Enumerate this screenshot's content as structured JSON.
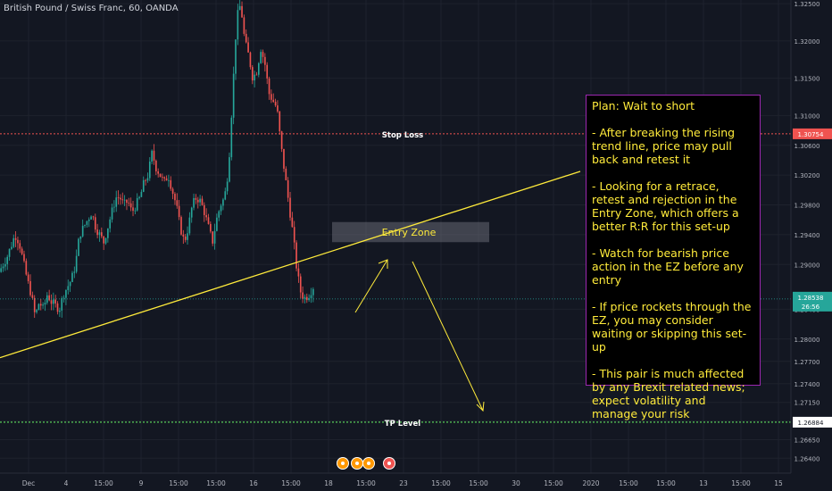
{
  "symbol_title": "British Pound / Swiss Franc, 60, OANDA",
  "plan_note": {
    "title": "Plan: Wait to short",
    "points": [
      "- After breaking the rising trend line, price may pull back and retest it",
      "- Looking for a retrace, retest and rejection in the Entry Zone, which offers a better R:R for this set-up",
      "- Watch for bearish price action in the EZ before any entry",
      "- If price rockets through the EZ, you may consider waiting or skipping this set-up",
      "- This pair is much affected by any Brexit related news; expect volatility and manage your risk"
    ]
  },
  "chart_data": {
    "type": "candlestick",
    "ylim": [
      1.262,
      1.3255
    ],
    "y_ticks": [
      "1.32500",
      "1.32000",
      "1.31500",
      "1.31000",
      "1.30600",
      "1.30200",
      "1.29800",
      "1.29400",
      "1.29000",
      "1.28400",
      "1.28000",
      "1.27700",
      "1.27400",
      "1.27150",
      "1.26900",
      "1.26650",
      "1.26400"
    ],
    "x_ticks": [
      "Dec",
      "4",
      "15:00",
      "9",
      "15:00",
      "15:00",
      "16",
      "15:00",
      "18",
      "15:00",
      "23",
      "15:00",
      "15:00",
      "30",
      "15:00",
      "2020",
      "15:00",
      "15:00",
      "13",
      "15:00",
      "15"
    ],
    "close_path": [
      1.289,
      1.29,
      1.291,
      1.2925,
      1.294,
      1.293,
      1.2905,
      1.288,
      1.286,
      1.283,
      1.285,
      1.284,
      1.286,
      1.285,
      1.2845,
      1.284,
      1.286,
      1.287,
      1.288,
      1.29,
      1.294,
      1.295,
      1.296,
      1.297,
      1.295,
      1.294,
      1.293,
      1.295,
      1.297,
      1.299,
      1.299,
      1.298,
      1.2985,
      1.297,
      1.298,
      1.299,
      1.301,
      1.302,
      1.305,
      1.303,
      1.302,
      1.301,
      1.302,
      1.3,
      1.298,
      1.295,
      1.293,
      1.295,
      1.298,
      1.299,
      1.2985,
      1.297,
      1.295,
      1.293,
      1.296,
      1.298,
      1.299,
      1.303,
      1.313,
      1.323,
      1.325,
      1.32,
      1.318,
      1.315,
      1.316,
      1.319,
      1.317,
      1.313,
      1.312,
      1.311,
      1.306,
      1.302,
      1.298,
      1.294,
      1.289,
      1.286,
      1.2855,
      1.286,
      1.287
    ],
    "stop_loss": {
      "label": "Stop Loss",
      "price": "1.30754",
      "value": 1.30754
    },
    "tp_level": {
      "label": "TP Level",
      "price": "1.26884",
      "value": 1.26884
    },
    "current_price": {
      "price": "1.28538",
      "value": 1.28538,
      "countdown": "26:56"
    },
    "entry_zone": {
      "label": "Entry Zone",
      "y_top": 1.2957,
      "y_bottom": 1.293
    },
    "trend_line": {
      "y_start": 1.2775,
      "y_end": 1.3025
    },
    "colors": {
      "up": "#26a69a",
      "down": "#ef5350",
      "stop": "#ef5350",
      "tp": "#4caf50",
      "trend": "#ffeb3b",
      "arrow": "#ffeb3b",
      "note_border": "#9c27b0"
    }
  }
}
